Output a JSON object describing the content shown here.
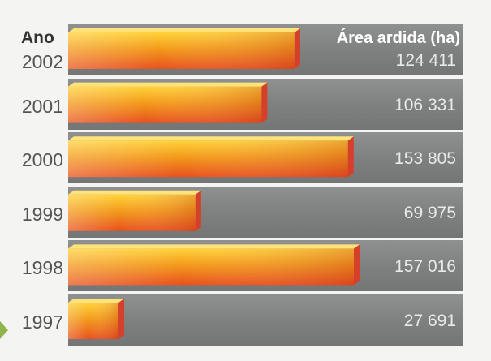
{
  "chart_data": {
    "type": "bar",
    "orientation": "horizontal",
    "category_header": "Ano",
    "value_header": "Área ardida (ha)",
    "categories": [
      "2002",
      "2001",
      "2000",
      "1999",
      "1998",
      "1997"
    ],
    "values": [
      124411,
      106331,
      153805,
      69975,
      157016,
      27691
    ],
    "value_labels": [
      "124 411",
      "106 331",
      "153 805",
      "69 975",
      "157 016",
      "27 691"
    ],
    "xlim": [
      0,
      157016
    ],
    "grid": false,
    "legend": "none"
  },
  "colors": {
    "bar_top": "#ffd23a",
    "bar_mid": "#f39a1a",
    "bar_bottom": "#e8501d",
    "bar_end": "#d6402a",
    "panel": "#808281",
    "text_dark": "#555555",
    "text_light": "#ececec",
    "accent_green": "#8fb44a"
  }
}
